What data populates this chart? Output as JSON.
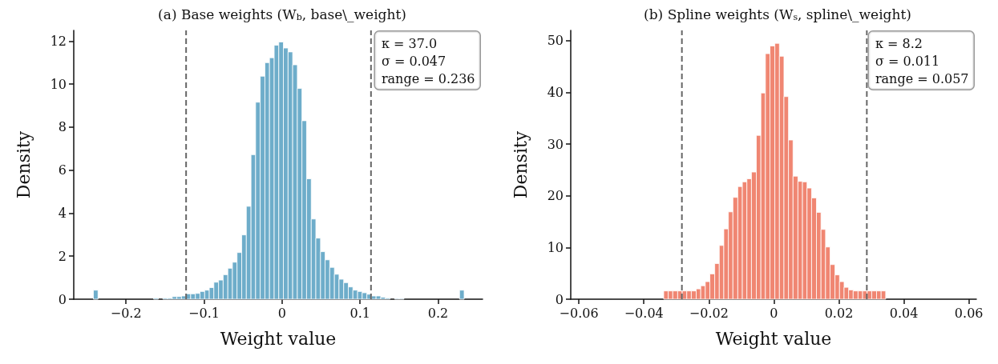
{
  "chart_data": [
    {
      "type": "histogram",
      "title": "(a) Base weights (W$_{b}$, base\\_weight)",
      "xlabel": "Weight value",
      "ylabel": "Density",
      "color": "#6eadca",
      "bins": [
        -0.2418,
        -0.2359,
        -0.2299,
        -0.224,
        -0.218,
        -0.2121,
        -0.2062,
        -0.2002,
        -0.1943,
        -0.1883,
        -0.1824,
        -0.1765,
        -0.1705,
        -0.1646,
        -0.1586,
        -0.1527,
        -0.1468,
        -0.1408,
        -0.1349,
        -0.1289,
        -0.123,
        -0.1171,
        -0.1111,
        -0.1052,
        -0.0992,
        -0.0933,
        -0.0874,
        -0.0814,
        -0.0755,
        -0.0695,
        -0.0636,
        -0.0577,
        -0.0517,
        -0.0458,
        -0.0398,
        -0.0339,
        -0.028,
        -0.022,
        -0.0161,
        -0.0101,
        -0.0042,
        0.0017,
        0.0077,
        0.0136,
        0.0196,
        0.0255,
        0.0314,
        0.0374,
        0.0433,
        0.0493,
        0.0552,
        0.0611,
        0.0671,
        0.073,
        0.079,
        0.0849,
        0.0908,
        0.0968,
        0.1027,
        0.1087,
        0.1146,
        0.1205,
        0.1265,
        0.1324,
        0.1384,
        0.1443,
        0.1502,
        0.1562,
        0.1621,
        0.1681,
        0.174,
        0.1799,
        0.1859,
        0.1918,
        0.1978,
        0.2037,
        0.2096,
        0.2156,
        0.2215,
        0.2275,
        0.2334
      ],
      "values": [
        0.42,
        0,
        0,
        0,
        0,
        0,
        0,
        0,
        0,
        0,
        0,
        0,
        0,
        0.05,
        0,
        0.05,
        0.05,
        0.12,
        0.12,
        0.15,
        0.25,
        0.25,
        0.27,
        0.36,
        0.42,
        0.54,
        0.79,
        0.89,
        1.14,
        1.44,
        1.72,
        2.17,
        2.99,
        4.32,
        6.72,
        9.16,
        10.37,
        11.0,
        11.23,
        11.81,
        11.96,
        11.68,
        11.5,
        10.9,
        9.8,
        8.3,
        5.6,
        3.73,
        2.84,
        2.21,
        1.83,
        1.48,
        1.16,
        0.93,
        0.77,
        0.57,
        0.42,
        0.36,
        0.3,
        0.23,
        0.15,
        0.15,
        0.09,
        0.05,
        0,
        0.03,
        0.03,
        0,
        0,
        0,
        0,
        0,
        0,
        0,
        0,
        0,
        0,
        0,
        0,
        0.42
      ],
      "xlim": [
        -0.267,
        0.257
      ],
      "xticks": [
        {
          "value": -0.2,
          "label": "−0.2"
        },
        {
          "value": -0.1,
          "label": "−0.1"
        },
        0.0,
        0.1,
        0.2
      ],
      "ylim": [
        0,
        12.5
      ],
      "yticks": [
        0,
        2,
        4,
        6,
        8,
        10,
        12
      ],
      "ref_lines": [
        {
          "axis": "x",
          "value": -0.123,
          "color": "#666666",
          "line_style": "dashed"
        },
        {
          "axis": "x",
          "value": 0.114,
          "color": "#666666",
          "line_style": "dashed"
        }
      ],
      "annotations": [
        "κ = 37.0",
        "σ = 0.047",
        "range = 0.236"
      ]
    },
    {
      "type": "histogram",
      "title": "(b) Spline weights (W$_{s}$, spline\\_weight)",
      "xlabel": "Weight value",
      "ylabel": "Density",
      "color": "#f08672",
      "bins": [
        -0.0339,
        -0.0325,
        -0.0311,
        -0.0296,
        -0.0282,
        -0.0268,
        -0.0254,
        -0.0239,
        -0.0225,
        -0.0211,
        -0.0197,
        -0.0182,
        -0.0168,
        -0.0154,
        -0.014,
        -0.0126,
        -0.0111,
        -0.0097,
        -0.0083,
        -0.0069,
        -0.0054,
        -0.004,
        -0.0026,
        -0.0012,
        0.0003,
        0.0017,
        0.0031,
        0.0045,
        0.0059,
        0.0074,
        0.0088,
        0.0102,
        0.0116,
        0.0131,
        0.0145,
        0.0159,
        0.0173,
        0.0188,
        0.0202,
        0.0216,
        0.023,
        0.0244,
        0.0259,
        0.0273,
        0.0287,
        0.0301,
        0.0316,
        0.033,
        0.0344
      ],
      "values": [
        1.6,
        1.6,
        1.6,
        1.6,
        1.6,
        1.6,
        1.6,
        2.0,
        2.6,
        3.4,
        4.9,
        6.9,
        10.4,
        13.6,
        16.9,
        19.7,
        21.8,
        22.7,
        23.3,
        24.6,
        31.7,
        39.9,
        47.5,
        49.0,
        49.5,
        47.0,
        39.2,
        30.8,
        23.8,
        22.8,
        22.7,
        21.5,
        19.6,
        16.8,
        13.5,
        10.1,
        6.7,
        4.7,
        3.4,
        2.3,
        1.8,
        1.6,
        1.6,
        1.6,
        1.6,
        1.6,
        1.6,
        1.6
      ],
      "xlim": [
        -0.0625,
        0.0623
      ],
      "xticks": [
        {
          "value": -0.06,
          "label": "−0.06"
        },
        {
          "value": -0.04,
          "label": "−0.04"
        },
        {
          "value": -0.02,
          "label": "−0.02"
        },
        0.0,
        0.02,
        0.04,
        0.06
      ],
      "ylim": [
        0,
        52
      ],
      "yticks": [
        0,
        10,
        20,
        30,
        40,
        50
      ],
      "ref_lines": [
        {
          "axis": "x",
          "value": -0.0283,
          "color": "#666666",
          "line_style": "dashed"
        },
        {
          "axis": "x",
          "value": 0.0286,
          "color": "#666666",
          "line_style": "dashed"
        }
      ],
      "annotations": [
        "κ = 8.2",
        "σ = 0.011",
        "range = 0.057"
      ]
    }
  ]
}
